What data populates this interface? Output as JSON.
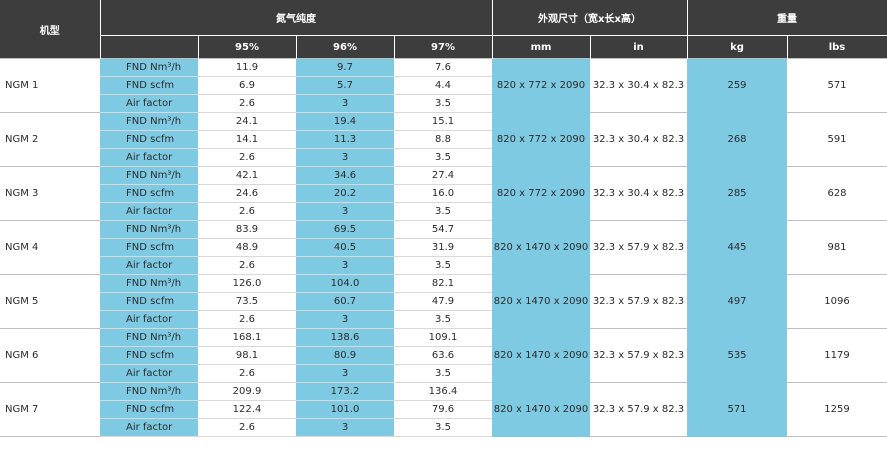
{
  "header": {
    "model": "机型",
    "purity": "氮气纯度",
    "size": "外观尺寸（宽x长x高）",
    "weight": "重量",
    "p95": "95%",
    "p96": "96%",
    "p97": "97%",
    "mm": "mm",
    "in": "in",
    "kg": "kg",
    "lbs": "lbs"
  },
  "metrics": [
    "FND Nm³/h",
    "FND scfm",
    "Air factor"
  ],
  "rows": [
    {
      "model": "NGM 1",
      "v": [
        [
          "11.9",
          "9.7",
          "7.6"
        ],
        [
          "6.9",
          "5.7",
          "4.4"
        ],
        [
          "2.6",
          "3",
          "3.5"
        ]
      ],
      "mm": "820 x 772 x 2090",
      "in": "32.3 x 30.4 x 82.3",
      "kg": "259",
      "lbs": "571"
    },
    {
      "model": "NGM 2",
      "v": [
        [
          "24.1",
          "19.4",
          "15.1"
        ],
        [
          "14.1",
          "11.3",
          "8.8"
        ],
        [
          "2.6",
          "3",
          "3.5"
        ]
      ],
      "mm": "820 x 772 x 2090",
      "in": "32.3 x 30.4 x 82.3",
      "kg": "268",
      "lbs": "591"
    },
    {
      "model": "NGM 3",
      "v": [
        [
          "42.1",
          "34.6",
          "27.4"
        ],
        [
          "24.6",
          "20.2",
          "16.0"
        ],
        [
          "2.6",
          "3",
          "3.5"
        ]
      ],
      "mm": "820 x 772 x 2090",
      "in": "32.3 x 30.4 x 82.3",
      "kg": "285",
      "lbs": "628"
    },
    {
      "model": "NGM 4",
      "v": [
        [
          "83.9",
          "69.5",
          "54.7"
        ],
        [
          "48.9",
          "40.5",
          "31.9"
        ],
        [
          "2.6",
          "3",
          "3.5"
        ]
      ],
      "mm": "820 x 1470 x 2090",
      "in": "32.3 x 57.9 x 82.3",
      "kg": "445",
      "lbs": "981"
    },
    {
      "model": "NGM 5",
      "v": [
        [
          "126.0",
          "104.0",
          "82.1"
        ],
        [
          "73.5",
          "60.7",
          "47.9"
        ],
        [
          "2.6",
          "3",
          "3.5"
        ]
      ],
      "mm": "820 x 1470 x 2090",
      "in": "32.3 x 57.9 x 82.3",
      "kg": "497",
      "lbs": "1096"
    },
    {
      "model": "NGM 6",
      "v": [
        [
          "168.1",
          "138.6",
          "109.1"
        ],
        [
          "98.1",
          "80.9",
          "63.6"
        ],
        [
          "2.6",
          "3",
          "3.5"
        ]
      ],
      "mm": "820 x 1470 x 2090",
      "in": "32.3 x 57.9 x 82.3",
      "kg": "535",
      "lbs": "1179"
    },
    {
      "model": "NGM 7",
      "v": [
        [
          "209.9",
          "173.2",
          "136.4"
        ],
        [
          "122.4",
          "101.0",
          "79.6"
        ],
        [
          "2.6",
          "3",
          "3.5"
        ]
      ],
      "mm": "820 x 1470 x 2090",
      "in": "32.3 x 57.9 x 82.3",
      "kg": "571",
      "lbs": "1259"
    }
  ],
  "colors": {
    "header_bg": "#3d3d3d",
    "accent": "#7ecae3"
  }
}
